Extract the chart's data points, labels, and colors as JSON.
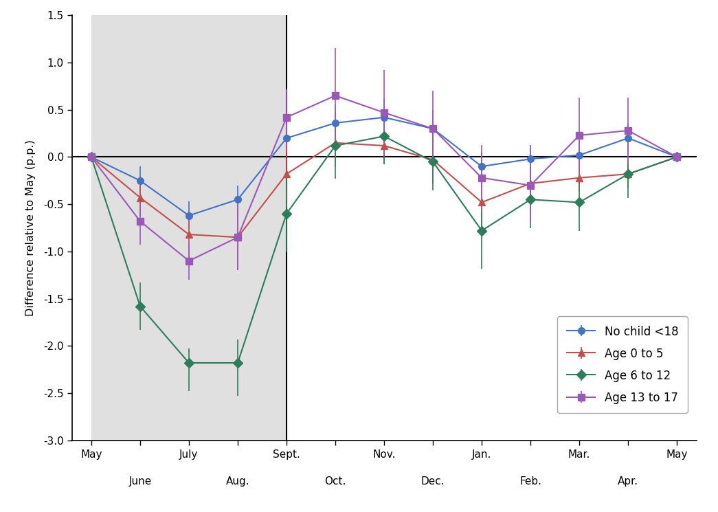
{
  "ylabel": "Difference relative to May (p.p.)",
  "ylim": [
    -3.0,
    1.5
  ],
  "yticks": [
    -3.0,
    -2.5,
    -2.0,
    -1.5,
    -1.0,
    -0.5,
    0.0,
    0.5,
    1.0,
    1.5
  ],
  "tick_positions": [
    0,
    1,
    2,
    3,
    4,
    5,
    6,
    7,
    8,
    9,
    10,
    11,
    12
  ],
  "top_row_labels": [
    "May",
    "",
    "July",
    "",
    "Sept.",
    "",
    "Nov.",
    "",
    "Jan.",
    "",
    "Mar.",
    "",
    "May"
  ],
  "bottom_row_labels": [
    "",
    "June",
    "",
    "Aug.",
    "",
    "Oct.",
    "",
    "Dec.",
    "",
    "Feb.",
    "",
    "Apr.",
    ""
  ],
  "series": [
    {
      "label": "No child <18",
      "color": "#4472C4",
      "marker": "o",
      "x": [
        0,
        1,
        2,
        3,
        4,
        5,
        6,
        7,
        8,
        9,
        10,
        11,
        12
      ],
      "y": [
        0.0,
        -0.25,
        -0.62,
        -0.45,
        0.2,
        0.36,
        0.42,
        0.3,
        -0.1,
        -0.02,
        0.02,
        0.2,
        0.0
      ],
      "yerr_low": [
        0.0,
        0.15,
        0.15,
        0.15,
        0.15,
        0.2,
        0.2,
        0.2,
        0.15,
        0.15,
        0.15,
        0.15,
        0.0
      ],
      "yerr_high": [
        0.0,
        0.15,
        0.15,
        0.15,
        0.15,
        0.2,
        0.2,
        0.2,
        0.15,
        0.15,
        0.15,
        0.15,
        0.0
      ]
    },
    {
      "label": "Age 0 to 5",
      "color": "#C0504D",
      "marker": "^",
      "x": [
        0,
        1,
        2,
        3,
        4,
        5,
        6,
        7,
        8,
        9,
        10,
        11,
        12
      ],
      "y": [
        0.0,
        -0.43,
        -0.82,
        -0.85,
        -0.18,
        0.15,
        0.12,
        -0.03,
        -0.48,
        -0.28,
        -0.22,
        -0.18,
        0.0
      ],
      "yerr_low": [
        0.0,
        0.2,
        0.25,
        0.35,
        0.35,
        0.25,
        0.2,
        0.25,
        0.25,
        0.15,
        0.15,
        0.15,
        0.0
      ],
      "yerr_high": [
        0.0,
        0.2,
        0.25,
        0.35,
        0.35,
        0.25,
        0.2,
        0.25,
        0.25,
        0.15,
        0.15,
        0.15,
        0.0
      ]
    },
    {
      "label": "Age 6 to 12",
      "color": "#2E7D5A",
      "marker": "D",
      "x": [
        0,
        1,
        2,
        3,
        4,
        5,
        6,
        7,
        8,
        9,
        10,
        11,
        12
      ],
      "y": [
        0.0,
        -1.58,
        -2.18,
        -2.18,
        -0.6,
        0.12,
        0.22,
        -0.05,
        -0.78,
        -0.45,
        -0.48,
        -0.18,
        0.0
      ],
      "yerr_low": [
        0.0,
        0.25,
        0.3,
        0.35,
        0.4,
        0.35,
        0.3,
        0.3,
        0.4,
        0.3,
        0.3,
        0.25,
        0.0
      ],
      "yerr_high": [
        0.0,
        0.25,
        0.15,
        0.25,
        0.4,
        0.35,
        0.3,
        0.3,
        0.35,
        0.3,
        0.3,
        0.25,
        0.0
      ]
    },
    {
      "label": "Age 13 to 17",
      "color": "#9B59B6",
      "marker": "s",
      "x": [
        0,
        1,
        2,
        3,
        4,
        5,
        6,
        7,
        8,
        9,
        10,
        11,
        12
      ],
      "y": [
        0.0,
        -0.68,
        -1.1,
        -0.85,
        0.42,
        0.65,
        0.47,
        0.3,
        -0.22,
        -0.3,
        0.23,
        0.28,
        0.0
      ],
      "yerr_low": [
        0.0,
        0.25,
        0.2,
        0.35,
        0.3,
        0.5,
        0.45,
        0.4,
        0.35,
        0.4,
        0.4,
        0.35,
        0.0
      ],
      "yerr_high": [
        0.0,
        0.25,
        0.2,
        0.35,
        0.3,
        0.5,
        0.45,
        0.4,
        0.35,
        0.4,
        0.4,
        0.35,
        0.0
      ]
    }
  ],
  "background_color": "#FFFFFF",
  "shade_color": "#E0E0E0",
  "vertical_line_x": 4,
  "xlim": [
    -0.4,
    12.4
  ]
}
